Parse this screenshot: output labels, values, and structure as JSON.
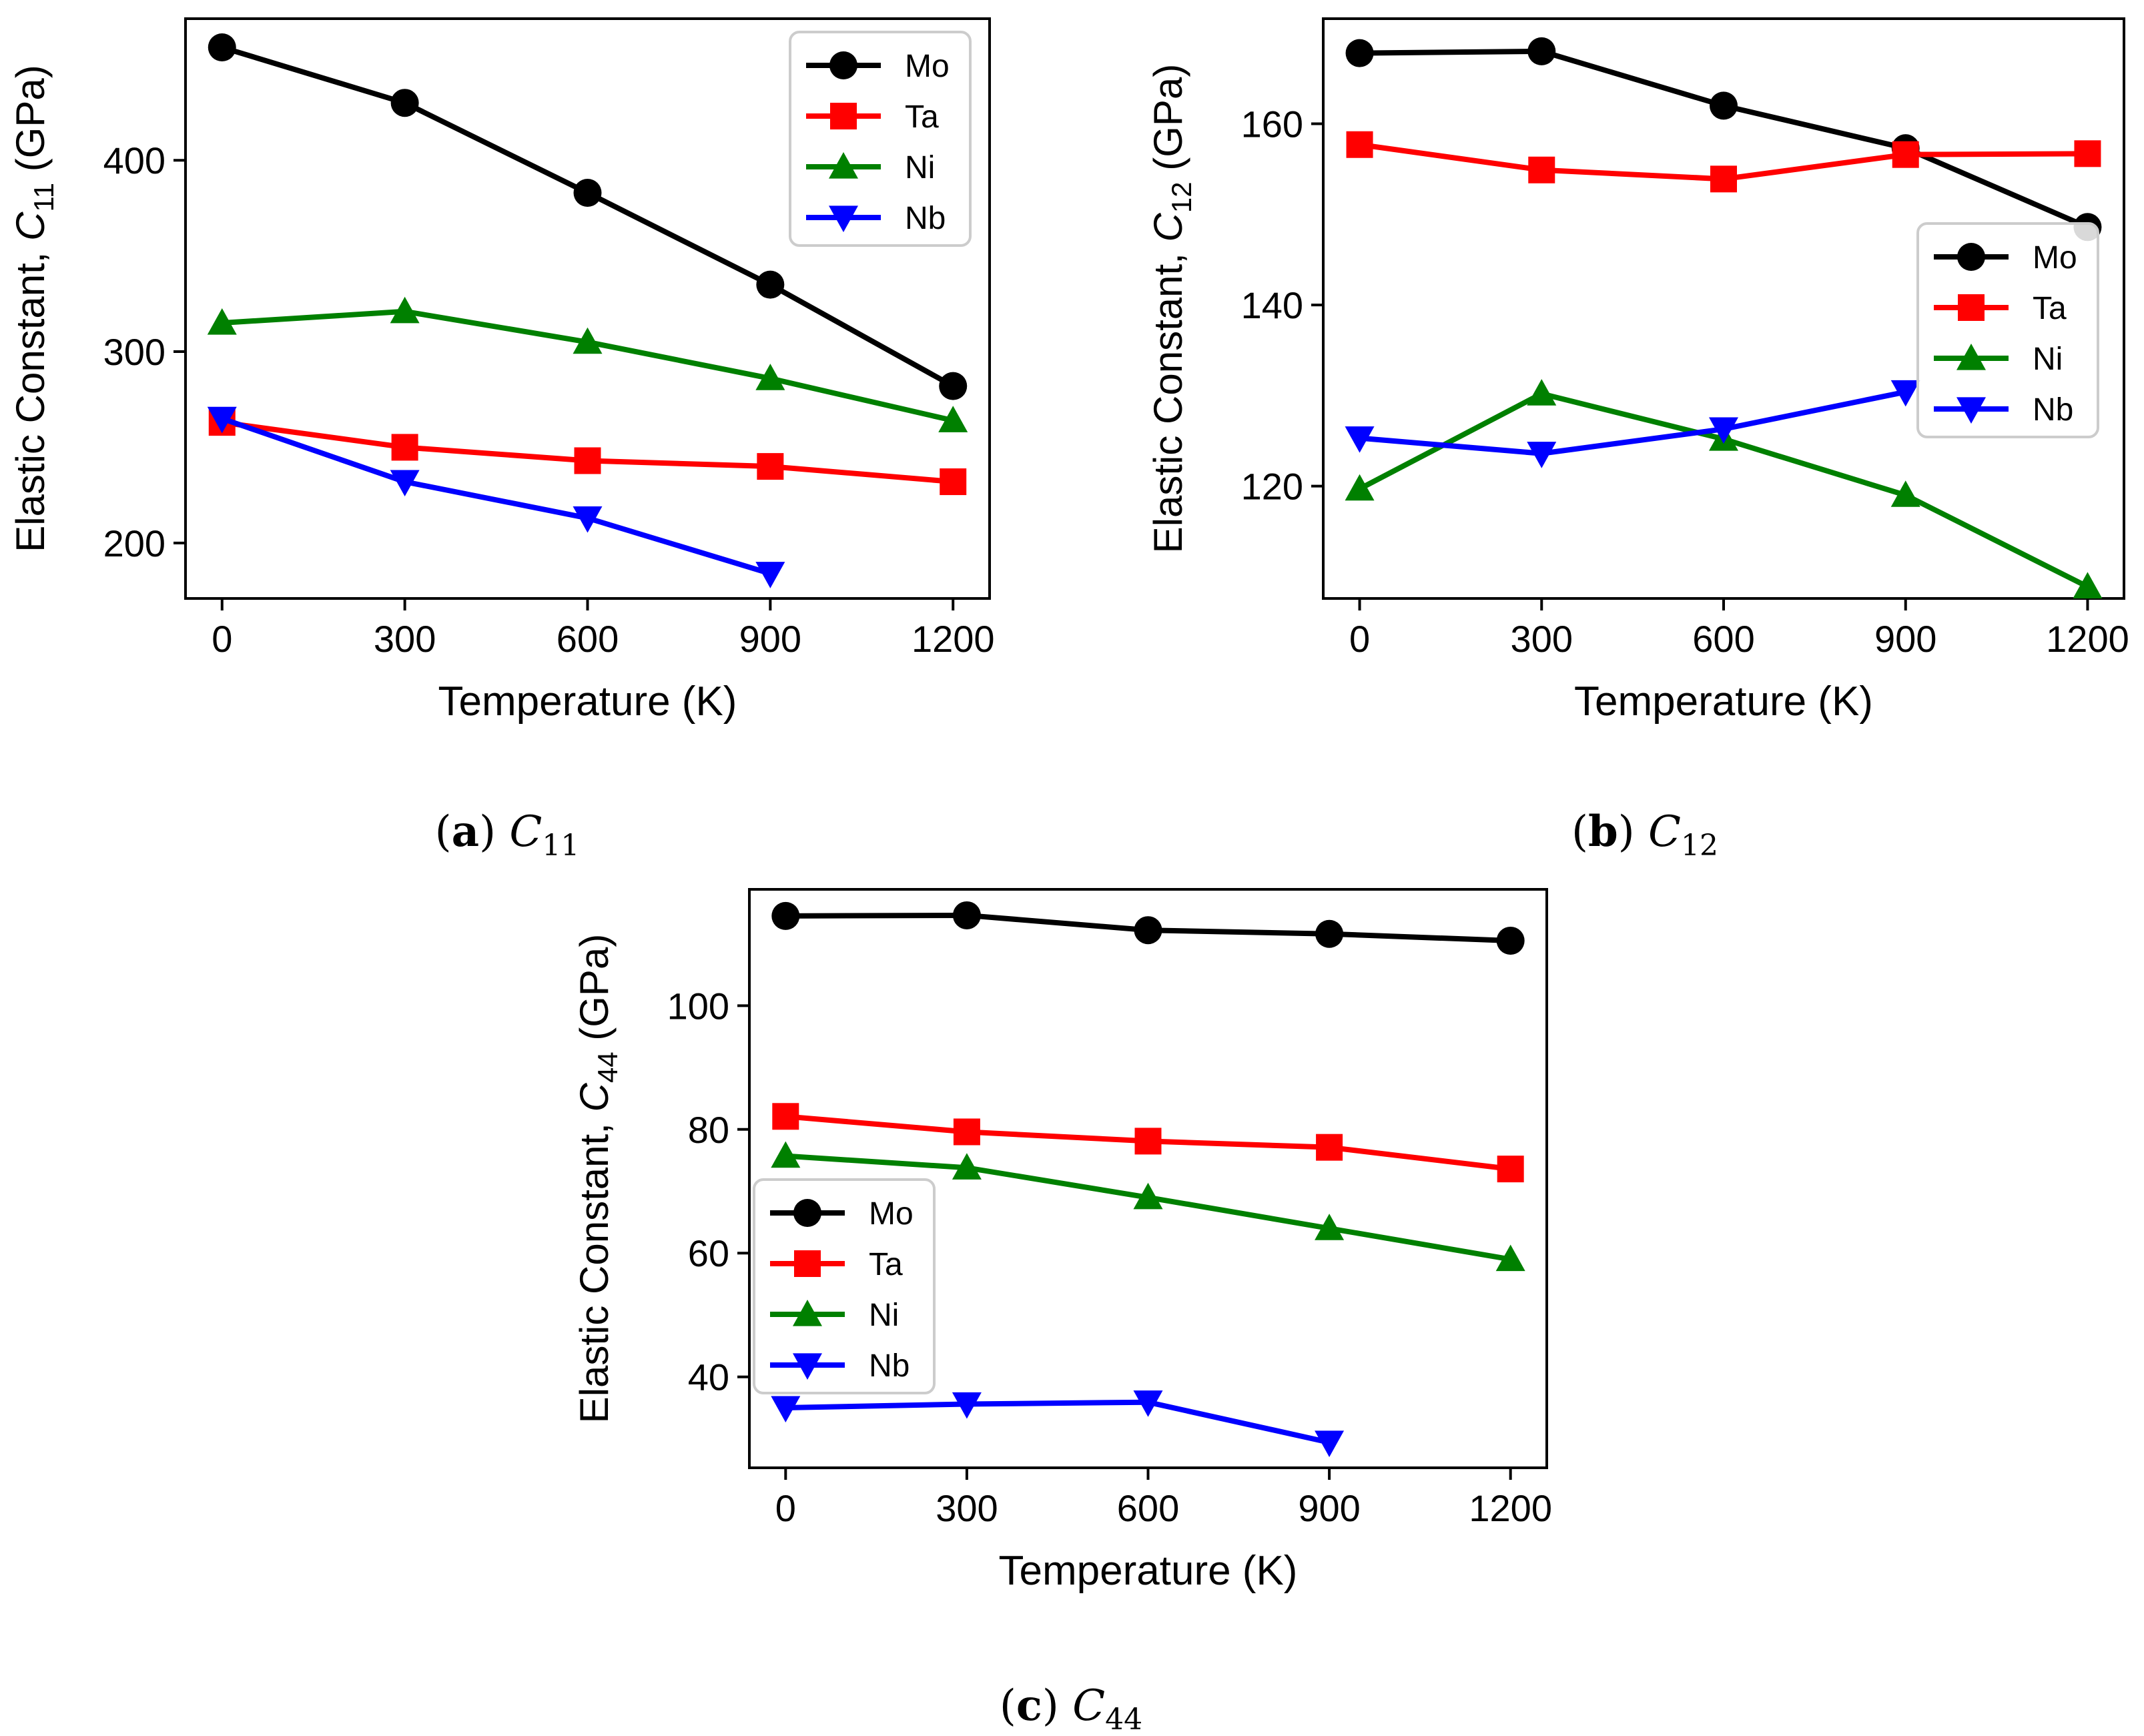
{
  "series_colors": {
    "Mo": "#000000",
    "Ta": "#ff0000",
    "Ni": "#008000",
    "Nb": "#0000ff"
  },
  "markers": {
    "Mo": "circle",
    "Ta": "square",
    "Ni": "triangle-up",
    "Nb": "triangle-down"
  },
  "chart_data": [
    {
      "type": "line",
      "title": "",
      "caption_letter": "(a)",
      "caption_symbol": "C",
      "caption_sub": "11",
      "xlabel": "Temperature (K)",
      "ylabel_prefix": "Elastic Constant, ",
      "ylabel_symbol": "C",
      "ylabel_sub": "11",
      "ylabel_suffix": " (GPa)",
      "x": [
        0,
        300,
        600,
        900,
        1200
      ],
      "xticks": [
        "0",
        "300",
        "600",
        "900",
        "1200"
      ],
      "xlim": [
        -60,
        1260
      ],
      "yticks": [
        200,
        300,
        400
      ],
      "ylim": [
        171,
        474
      ],
      "legend_position": "upper-right",
      "series": [
        {
          "name": "Mo",
          "values": [
            459,
            430,
            383,
            335,
            282
          ]
        },
        {
          "name": "Ta",
          "values": [
            263,
            250,
            243,
            240,
            232
          ]
        },
        {
          "name": "Ni",
          "values": [
            315,
            321,
            305,
            286,
            264
          ]
        },
        {
          "name": "Nb",
          "values": [
            265,
            232,
            213,
            184,
            null
          ]
        }
      ]
    },
    {
      "type": "line",
      "title": "",
      "caption_letter": "(b)",
      "caption_symbol": "C",
      "caption_sub": "12",
      "xlabel": "Temperature (K)",
      "ylabel_prefix": "Elastic Constant, ",
      "ylabel_symbol": "C",
      "ylabel_sub": "12",
      "ylabel_suffix": " (GPa)",
      "x": [
        0,
        300,
        600,
        900,
        1200
      ],
      "xticks": [
        "0",
        "300",
        "600",
        "900",
        "1200"
      ],
      "xlim": [
        -60,
        1260
      ],
      "yticks": [
        120,
        140,
        160
      ],
      "ylim": [
        107.6,
        171.6
      ],
      "legend_position": "center-right",
      "series": [
        {
          "name": "Mo",
          "values": [
            167.8,
            168.0,
            162.0,
            157.3,
            148.6
          ]
        },
        {
          "name": "Ta",
          "values": [
            157.7,
            154.9,
            153.9,
            156.6,
            156.7
          ]
        },
        {
          "name": "Ni",
          "values": [
            119.7,
            130.2,
            125.2,
            119.0,
            108.9
          ]
        },
        {
          "name": "Nb",
          "values": [
            125.3,
            123.6,
            126.3,
            130.4,
            null
          ]
        }
      ]
    },
    {
      "type": "line",
      "title": "",
      "caption_letter": "(c)",
      "caption_symbol": "C",
      "caption_sub": "44",
      "xlabel": "Temperature (K)",
      "ylabel_prefix": "Elastic Constant, ",
      "ylabel_symbol": "C",
      "ylabel_sub": "44",
      "ylabel_suffix": " (GPa)",
      "x": [
        0,
        300,
        600,
        900,
        1200
      ],
      "xticks": [
        "0",
        "300",
        "600",
        "900",
        "1200"
      ],
      "xlim": [
        -60,
        1260
      ],
      "yticks": [
        40,
        60,
        80,
        100
      ],
      "ylim": [
        25.3,
        118.8
      ],
      "legend_position": "center-left",
      "series": [
        {
          "name": "Mo",
          "values": [
            114.5,
            114.6,
            112.2,
            111.6,
            110.5
          ]
        },
        {
          "name": "Ta",
          "values": [
            82.1,
            79.6,
            78.1,
            77.1,
            73.6
          ]
        },
        {
          "name": "Ni",
          "values": [
            75.7,
            73.8,
            69.0,
            64.0,
            59.0
          ]
        },
        {
          "name": "Nb",
          "values": [
            35.0,
            35.6,
            35.9,
            29.4,
            null
          ]
        }
      ]
    }
  ]
}
